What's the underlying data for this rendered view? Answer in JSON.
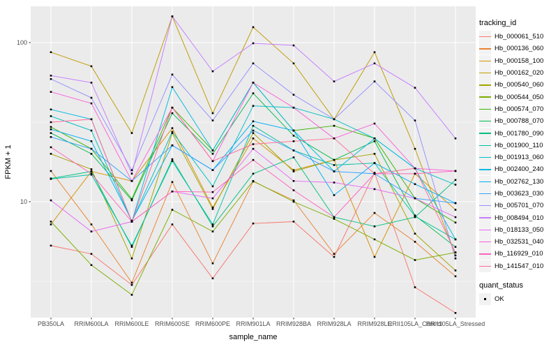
{
  "chart_data": {
    "type": "line",
    "title": "",
    "xlabel": "sample_name",
    "ylabel": "FPKM + 1",
    "y_scale": "log10",
    "y_ticks": [
      10,
      100
    ],
    "y_minor_gridlines": [
      3.162,
      31.62
    ],
    "ylim": [
      1.85,
      170
    ],
    "grid": true,
    "panel_bg": "#EBEBEB",
    "grid_color": "#FFFFFF",
    "point_color": "#000000",
    "legend": {
      "title": "tracking_id",
      "position": "right"
    },
    "quant_legend": {
      "title": "quant_status",
      "items": [
        {
          "label": "OK",
          "marker": "black-square"
        }
      ]
    },
    "categories": [
      "PB350LA",
      "RRIM600LA",
      "RRIM600LE",
      "RRIM600SE",
      "RRIM600PE",
      "RRIM901LA",
      "RRIM928BA",
      "RRIM928LA",
      "RRIM928LE",
      "RRII105LA_Control",
      "RRII105LA_Stressed"
    ],
    "series": [
      {
        "name": "Hb_000061_510",
        "color": "#F8766D",
        "values": [
          5.3,
          4.7,
          3.0,
          7.2,
          3.3,
          7.3,
          7.5,
          4.5,
          15.2,
          2.9,
          2.0
        ]
      },
      {
        "name": "Hb_000136_060",
        "color": "#EA8331",
        "values": [
          15.6,
          7.2,
          3.1,
          13.3,
          4.1,
          13.4,
          10.2,
          4.7,
          8.5,
          5.6,
          3.4
        ]
      },
      {
        "name": "Hb_000158_100",
        "color": "#D89000",
        "values": [
          7.2,
          15.5,
          13.5,
          29,
          9.2,
          25,
          15.8,
          18.3,
          4.5,
          15.0,
          8.9
        ]
      },
      {
        "name": "Hb_000162_020",
        "color": "#C09B00",
        "values": [
          87,
          71,
          27,
          146,
          36,
          125,
          74,
          33,
          87,
          21.5,
          4.6
        ]
      },
      {
        "name": "Hb_000540_060",
        "color": "#A3A500",
        "values": [
          20,
          16,
          4.4,
          27,
          9.0,
          27,
          15.5,
          18.3,
          20,
          6.3,
          3.7
        ]
      },
      {
        "name": "Hb_000544_050",
        "color": "#7CAE00",
        "values": [
          7.5,
          4.0,
          2.6,
          8.9,
          6.5,
          13.5,
          10.0,
          7.8,
          5.8,
          4.3,
          4.8
        ]
      },
      {
        "name": "Hb_000574_070",
        "color": "#39B600",
        "values": [
          29.5,
          21.5,
          10.4,
          39,
          21,
          56,
          28,
          30,
          25,
          10.5,
          7.4
        ]
      },
      {
        "name": "Hb_000788_070",
        "color": "#00BB4E",
        "values": [
          27,
          20,
          10.2,
          36,
          20,
          48,
          26,
          18.3,
          24,
          8.2,
          5.2
        ]
      },
      {
        "name": "Hb_001780_090",
        "color": "#00BF7D",
        "values": [
          14,
          15.5,
          5.2,
          18.5,
          7.0,
          15,
          19,
          8.0,
          7.0,
          8.0,
          13.7
        ]
      },
      {
        "name": "Hb_001900_110",
        "color": "#00C1A3",
        "values": [
          13.9,
          14.8,
          5.3,
          18,
          7.2,
          30,
          21,
          17,
          17.5,
          8.1,
          5.8
        ]
      },
      {
        "name": "Hb_001913_060",
        "color": "#00BFC4",
        "values": [
          34.5,
          28,
          7.5,
          27.5,
          12.5,
          40,
          39,
          33,
          25,
          16.2,
          12.8
        ]
      },
      {
        "name": "Hb_002400_240",
        "color": "#00BAE0",
        "values": [
          38,
          33,
          7.5,
          52.5,
          21,
          56,
          28,
          15.5,
          25,
          16.2,
          5.8
        ]
      },
      {
        "name": "Hb_002762_130",
        "color": "#00B0F6",
        "values": [
          28.5,
          24,
          7.6,
          22.6,
          15.8,
          32,
          28,
          11,
          17.5,
          12.9,
          9.8
        ]
      },
      {
        "name": "Hb_003623_030",
        "color": "#35A2FF",
        "values": [
          25.5,
          21.5,
          13.5,
          22.6,
          15.8,
          28,
          21,
          15.5,
          15,
          10.5,
          9.8
        ]
      },
      {
        "name": "Hb_005701_070",
        "color": "#9590FF",
        "values": [
          59,
          45,
          15.8,
          63,
          32.4,
          74,
          47,
          33,
          57,
          32.4,
          4.4
        ]
      },
      {
        "name": "Hb_008494_010",
        "color": "#C77CFF",
        "values": [
          62,
          56,
          15,
          146,
          66,
          99,
          96,
          57,
          74,
          52,
          25
        ]
      },
      {
        "name": "Hb_018133_050",
        "color": "#E76BF3",
        "values": [
          10.2,
          6.5,
          7.5,
          11.6,
          10.5,
          21.5,
          13.5,
          13.2,
          12,
          10.5,
          8.0
        ]
      },
      {
        "name": "Hb_032531_040",
        "color": "#FA62DB",
        "values": [
          49,
          41.5,
          13.5,
          39,
          18,
          56,
          39,
          25,
          31,
          16.2,
          15.6
        ]
      },
      {
        "name": "Hb_116929_010",
        "color": "#FF62BC",
        "values": [
          22,
          15,
          7.5,
          11.6,
          11.5,
          18.3,
          11.8,
          8.0,
          15,
          15,
          15.6
        ]
      },
      {
        "name": "Hb_141547_010",
        "color": "#FF6A98",
        "values": [
          31.6,
          33,
          7.5,
          39,
          18,
          23,
          24,
          25,
          15,
          16.2,
          4.8
        ]
      }
    ]
  }
}
